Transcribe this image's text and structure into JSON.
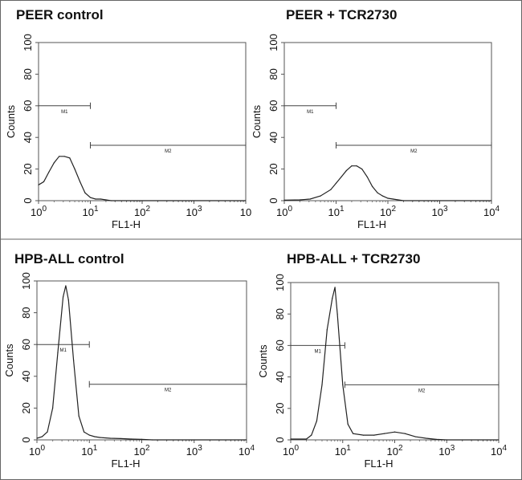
{
  "chart_data": [
    {
      "type": "line",
      "title": "PEER control",
      "xlabel": "FL1-H",
      "ylabel": "Counts",
      "xscale": "log",
      "xlim": [
        1,
        10000
      ],
      "ylim": [
        0,
        100
      ],
      "yticks": [
        "0",
        "20",
        "40",
        "60",
        "80",
        "100"
      ],
      "xticks": [
        {
          "base": "10",
          "exp": "0"
        },
        {
          "base": "10",
          "exp": "1"
        },
        {
          "base": "10",
          "exp": "2"
        },
        {
          "base": "10",
          "exp": "3"
        },
        {
          "base": "10",
          "exp": ""
        }
      ],
      "markers": [
        {
          "label": "M1",
          "from": 1,
          "to": 10,
          "y": 60
        },
        {
          "label": "M2",
          "from": 10,
          "to": 10000,
          "y": 35
        }
      ],
      "x": [
        1,
        1.26,
        1.58,
        2,
        2.5,
        3.16,
        4,
        5,
        6.3,
        7.9,
        10,
        12.6,
        15.8,
        20,
        25
      ],
      "y": [
        10,
        12,
        18,
        24,
        28,
        28,
        27,
        20,
        12,
        5,
        2,
        1,
        1,
        0.5,
        0
      ]
    },
    {
      "type": "line",
      "title": "PEER + TCR2730",
      "xlabel": "FL1-H",
      "ylabel": "Counts",
      "xscale": "log",
      "xlim": [
        1,
        10000
      ],
      "ylim": [
        0,
        100
      ],
      "yticks": [
        "0",
        "20",
        "40",
        "60",
        "80",
        "100"
      ],
      "xticks": [
        {
          "base": "10",
          "exp": "0"
        },
        {
          "base": "10",
          "exp": "1"
        },
        {
          "base": "10",
          "exp": "2"
        },
        {
          "base": "10",
          "exp": "3"
        },
        {
          "base": "10",
          "exp": "4"
        }
      ],
      "markers": [
        {
          "label": "M1",
          "from": 1,
          "to": 10,
          "y": 60
        },
        {
          "label": "M2",
          "from": 10,
          "to": 10000,
          "y": 35
        }
      ],
      "x": [
        1,
        2,
        3.16,
        5,
        7.9,
        10,
        12.6,
        15.8,
        20,
        25,
        31.6,
        40,
        50,
        63,
        79,
        100,
        126,
        158,
        200
      ],
      "y": [
        0.3,
        0.5,
        1,
        3,
        7,
        11,
        15,
        19,
        22,
        22,
        20,
        15,
        9,
        5,
        3,
        1.5,
        1,
        0.5,
        0
      ]
    },
    {
      "type": "line",
      "title": "HPB-ALL control",
      "xlabel": "FL1-H",
      "ylabel": "Counts",
      "xscale": "log",
      "xlim": [
        1,
        10000
      ],
      "ylim": [
        0,
        100
      ],
      "yticks": [
        "0",
        "20",
        "40",
        "60",
        "80",
        "100"
      ],
      "xticks": [
        {
          "base": "10",
          "exp": "0"
        },
        {
          "base": "10",
          "exp": "1"
        },
        {
          "base": "10",
          "exp": "2"
        },
        {
          "base": "10",
          "exp": "3"
        },
        {
          "base": "10",
          "exp": "4"
        }
      ],
      "markers": [
        {
          "label": "M1",
          "from": 1,
          "to": 10,
          "y": 60
        },
        {
          "label": "M2",
          "from": 10,
          "to": 10000,
          "y": 35
        }
      ],
      "x": [
        1,
        1.26,
        1.58,
        2,
        2.5,
        3.16,
        3.55,
        4,
        5,
        6.3,
        7.9,
        10,
        12.6,
        15.8,
        25,
        40,
        63,
        100,
        160
      ],
      "y": [
        1,
        2,
        5,
        20,
        55,
        90,
        97,
        88,
        50,
        15,
        5,
        3,
        2,
        1.5,
        1,
        0.8,
        0.5,
        0.3,
        0
      ]
    },
    {
      "type": "line",
      "title": "HPB-ALL + TCR2730",
      "xlabel": "FL1-H",
      "ylabel": "Counts",
      "xscale": "log",
      "xlim": [
        1,
        10000
      ],
      "ylim": [
        0,
        100
      ],
      "yticks": [
        "0",
        "20",
        "40",
        "60",
        "80",
        "100"
      ],
      "xticks": [
        {
          "base": "10",
          "exp": "0"
        },
        {
          "base": "10",
          "exp": "1"
        },
        {
          "base": "10",
          "exp": "2"
        },
        {
          "base": "10",
          "exp": "3"
        },
        {
          "base": "10",
          "exp": "4"
        }
      ],
      "markers": [
        {
          "label": "M1",
          "from": 1,
          "to": 11,
          "y": 60
        },
        {
          "label": "M2",
          "from": 11,
          "to": 10000,
          "y": 35
        }
      ],
      "x": [
        1,
        2,
        2.5,
        3.16,
        4,
        5,
        6.3,
        7.1,
        7.9,
        10,
        12.6,
        15.8,
        25,
        40,
        63,
        100,
        158,
        250,
        400,
        630,
        1000
      ],
      "y": [
        0.5,
        0.5,
        3,
        12,
        35,
        70,
        90,
        97,
        80,
        35,
        10,
        4,
        3,
        3,
        4,
        5,
        4,
        2,
        1,
        0.3,
        0
      ]
    }
  ]
}
